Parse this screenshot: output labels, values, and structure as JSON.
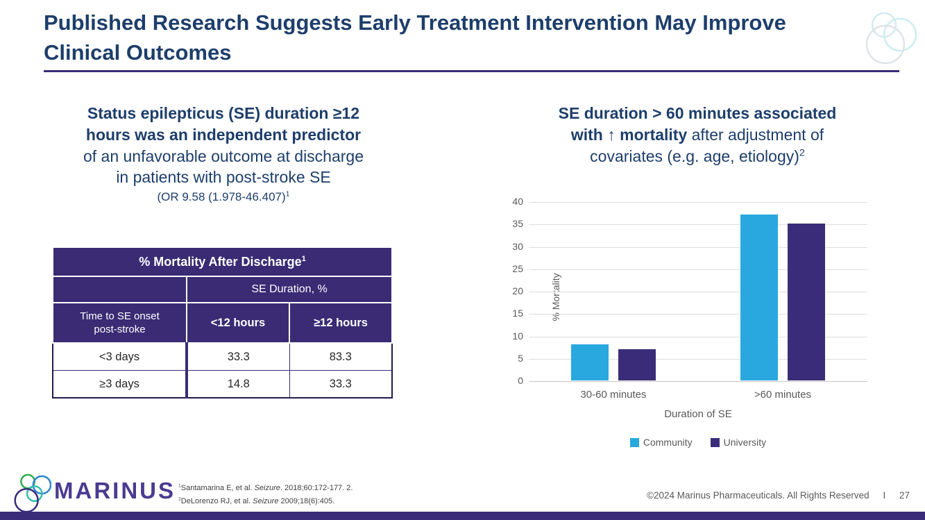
{
  "slide": {
    "title": "Published Research Suggests Early Treatment Intervention May Improve Clinical Outcomes",
    "accent_purple": "#3b2c79",
    "navy_text": "#1d3e6b"
  },
  "left_panel": {
    "heading_bold_line1": "Status epilepticus (SE) duration ≥12",
    "heading_bold_line2": "hours was an independent predictor",
    "heading_line3": "of an unfavorable outcome at discharge",
    "heading_line4": "in patients with post-stroke SE",
    "or_text": "(OR 9.58 (1.978-46.407)",
    "or_sup": "1",
    "table": {
      "title": "% Mortality After Discharge",
      "title_sup": "1",
      "col_group_header": "SE Duration, %",
      "row_header_line1": "Time to SE onset",
      "row_header_line2": "post-stroke",
      "col_header_a": "<12 hours",
      "col_header_b": "≥12 hours",
      "rows": [
        {
          "label": "<3 days",
          "lt12": "33.3",
          "gte12": "83.3"
        },
        {
          "label": "≥3 days",
          "lt12": "14.8",
          "gte12": "33.3"
        }
      ]
    }
  },
  "right_panel": {
    "heading_bold_line1": "SE duration > 60 minutes associated",
    "heading_bold_part2": "with ↑ mortality",
    "heading_reg_part2": " after adjustment of",
    "heading_reg_line3": "covariates (e.g. age, etiology)",
    "heading_sup": "2"
  },
  "chart_data": {
    "type": "bar",
    "title": "SE duration > 60 minutes associated with ↑ mortality after adjustment of covariates (e.g. age, etiology)2",
    "categories": [
      "30-60 minutes",
      ">60 minutes"
    ],
    "series": [
      {
        "name": "Community",
        "color": "#29a8df",
        "values": [
          8,
          37
        ]
      },
      {
        "name": "University",
        "color": "#3b2c79",
        "values": [
          7,
          35
        ]
      }
    ],
    "xlabel": "Duration of SE",
    "ylabel": "% Mortality",
    "ylim": [
      0,
      40
    ],
    "ytick_step": 5,
    "grid": true,
    "legend_position": "bottom"
  },
  "footer": {
    "logo_text": "MARINUS",
    "refs": [
      {
        "sup": "1",
        "pre": "Santamarina E, et al. ",
        "journal": "Seizure",
        "post": ". 2018;60:172-177. 2."
      },
      {
        "sup": "2",
        "pre": "DeLorenzo RJ, et al. ",
        "journal": "Seizure",
        "post": " 2009;18(6):405."
      }
    ],
    "copyright": "©2024 Marinus Pharmaceuticals. All Rights Reserved",
    "divider": "I",
    "page_number": "27"
  }
}
